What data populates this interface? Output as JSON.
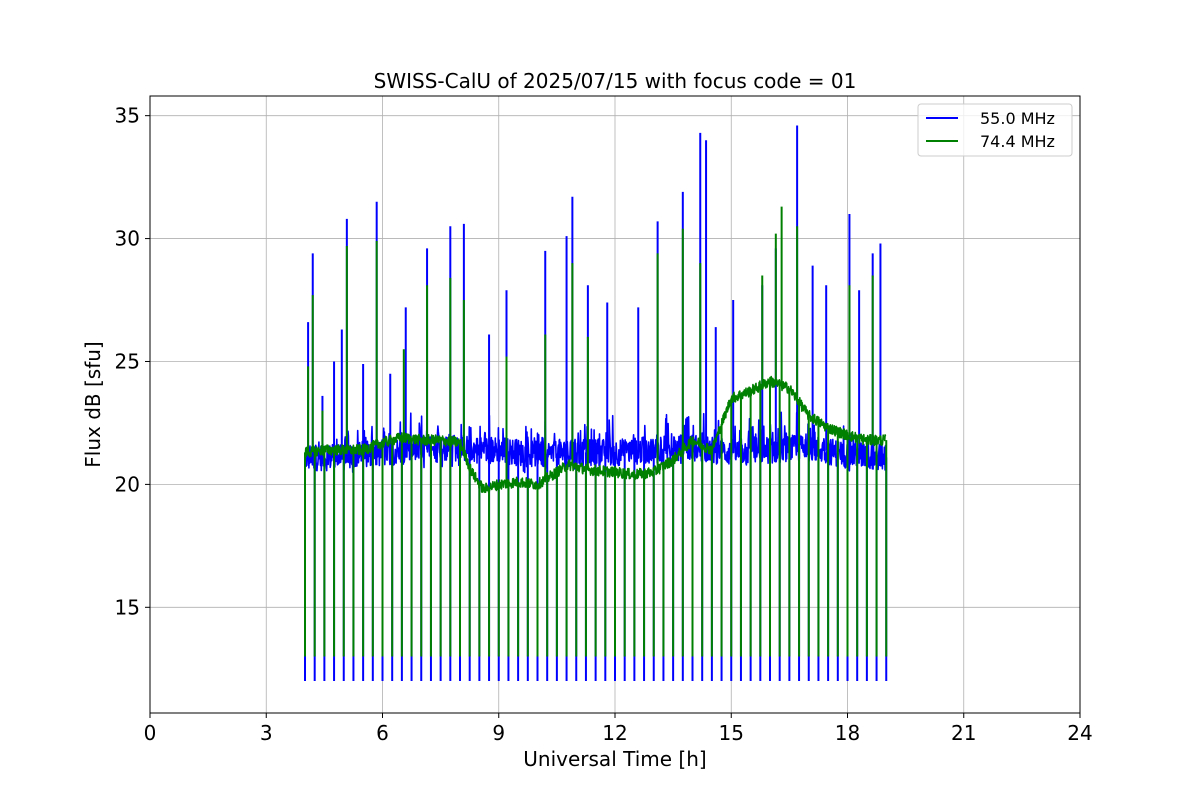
{
  "chart_data": {
    "type": "line",
    "title": "SWISS-CalU of 2025/07/15 with focus code = 01",
    "xlabel": "Universal Time [h]",
    "ylabel": "Flux dB [sfu]",
    "xlim": [
      0,
      24
    ],
    "ylim": [
      10.7,
      35.8
    ],
    "xticks": [
      0,
      3,
      6,
      9,
      12,
      15,
      18,
      21,
      24
    ],
    "yticks": [
      15,
      20,
      25,
      30,
      35
    ],
    "grid": true,
    "legend_position": "top-right",
    "calibration_period_h": 0.25,
    "series": [
      {
        "name": "55.0 MHz",
        "color": "#0000ff",
        "baseline": {
          "x": [
            4.0,
            5.0,
            6.0,
            7.0,
            8.0,
            8.5,
            9.0,
            10.0,
            11.0,
            12.0,
            13.0,
            14.0,
            15.0,
            16.0,
            17.0,
            18.0,
            19.0
          ],
          "y": [
            21.1,
            21.1,
            21.3,
            21.4,
            21.5,
            21.4,
            21.4,
            21.2,
            21.3,
            21.3,
            21.4,
            21.5,
            21.3,
            21.4,
            21.5,
            21.2,
            21.1
          ],
          "noise_range": [
            20.2,
            22.3
          ]
        },
        "calibration_low": 12.0,
        "peaks": [
          {
            "x": 4.08,
            "y": 26.6
          },
          {
            "x": 4.2,
            "y": 29.4
          },
          {
            "x": 4.45,
            "y": 23.6
          },
          {
            "x": 4.75,
            "y": 25.0
          },
          {
            "x": 4.95,
            "y": 26.3
          },
          {
            "x": 5.08,
            "y": 30.8
          },
          {
            "x": 5.5,
            "y": 24.9
          },
          {
            "x": 5.85,
            "y": 31.5
          },
          {
            "x": 6.2,
            "y": 24.5
          },
          {
            "x": 6.6,
            "y": 27.2
          },
          {
            "x": 7.15,
            "y": 29.6
          },
          {
            "x": 7.75,
            "y": 30.5
          },
          {
            "x": 8.1,
            "y": 30.6
          },
          {
            "x": 8.75,
            "y": 26.1
          },
          {
            "x": 9.2,
            "y": 27.9
          },
          {
            "x": 10.2,
            "y": 29.5
          },
          {
            "x": 10.75,
            "y": 30.1
          },
          {
            "x": 10.9,
            "y": 31.7
          },
          {
            "x": 11.3,
            "y": 28.1
          },
          {
            "x": 11.8,
            "y": 27.4
          },
          {
            "x": 12.6,
            "y": 27.2
          },
          {
            "x": 13.1,
            "y": 30.7
          },
          {
            "x": 13.75,
            "y": 31.9
          },
          {
            "x": 14.2,
            "y": 34.3
          },
          {
            "x": 14.35,
            "y": 34.0
          },
          {
            "x": 14.6,
            "y": 26.4
          },
          {
            "x": 15.05,
            "y": 27.5
          },
          {
            "x": 15.8,
            "y": 28.1
          },
          {
            "x": 16.15,
            "y": 29.6
          },
          {
            "x": 16.7,
            "y": 34.6
          },
          {
            "x": 17.1,
            "y": 28.9
          },
          {
            "x": 17.45,
            "y": 28.1
          },
          {
            "x": 18.05,
            "y": 31.0
          },
          {
            "x": 18.3,
            "y": 27.9
          },
          {
            "x": 18.65,
            "y": 29.4
          },
          {
            "x": 18.85,
            "y": 29.8
          }
        ]
      },
      {
        "name": "74.4 MHz",
        "color": "#008000",
        "baseline": {
          "x": [
            4.0,
            4.5,
            5.0,
            5.5,
            6.0,
            6.5,
            7.0,
            7.5,
            8.0,
            8.3,
            8.6,
            9.0,
            9.5,
            10.0,
            10.4,
            10.8,
            11.3,
            12.0,
            12.5,
            13.0,
            13.5,
            14.0,
            14.5,
            15.0,
            15.5,
            16.0,
            16.5,
            17.0,
            17.5,
            18.0,
            18.5,
            19.0
          ],
          "y": [
            21.3,
            21.4,
            21.4,
            21.4,
            21.7,
            21.9,
            21.8,
            21.8,
            21.7,
            20.5,
            19.8,
            20.0,
            20.1,
            20.0,
            20.4,
            20.8,
            20.6,
            20.5,
            20.4,
            20.5,
            21.0,
            21.8,
            21.4,
            23.5,
            23.8,
            24.2,
            23.9,
            22.8,
            22.3,
            22.0,
            21.8,
            21.8
          ],
          "noise_range": [
            -0.4,
            0.4
          ]
        },
        "calibration_low": 13.0,
        "peaks": [
          {
            "x": 4.08,
            "y": 24.8
          },
          {
            "x": 4.2,
            "y": 27.7
          },
          {
            "x": 4.45,
            "y": 23.0
          },
          {
            "x": 5.08,
            "y": 29.7
          },
          {
            "x": 5.85,
            "y": 29.9
          },
          {
            "x": 6.55,
            "y": 25.5
          },
          {
            "x": 7.15,
            "y": 28.1
          },
          {
            "x": 7.75,
            "y": 28.4
          },
          {
            "x": 8.1,
            "y": 27.5
          },
          {
            "x": 9.2,
            "y": 25.2
          },
          {
            "x": 10.2,
            "y": 26.1
          },
          {
            "x": 10.9,
            "y": 29.0
          },
          {
            "x": 11.3,
            "y": 26.0
          },
          {
            "x": 13.1,
            "y": 29.4
          },
          {
            "x": 13.75,
            "y": 30.4
          },
          {
            "x": 14.2,
            "y": 29.0
          },
          {
            "x": 15.8,
            "y": 28.5
          },
          {
            "x": 16.15,
            "y": 30.2
          },
          {
            "x": 16.3,
            "y": 31.3
          },
          {
            "x": 16.7,
            "y": 30.5
          },
          {
            "x": 18.05,
            "y": 28.1
          },
          {
            "x": 18.65,
            "y": 28.5
          }
        ]
      }
    ]
  }
}
